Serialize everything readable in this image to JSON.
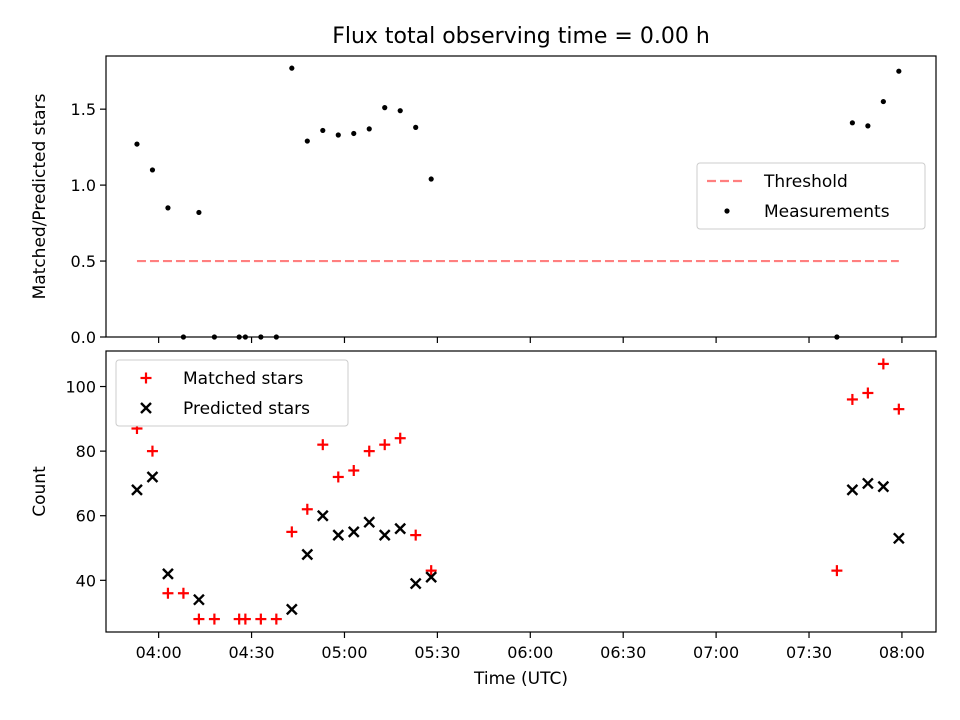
{
  "title": "Flux total observing time = 0.00 h",
  "colors": {
    "threshold": "#ff7f7f",
    "measurements": "#000000",
    "matched": "#ff0000",
    "predicted": "#000000"
  },
  "chart_data": [
    {
      "type": "scatter",
      "panel": "top",
      "ylabel": "Matched/Predicted stars",
      "xlim": [
        "03:43",
        "08:11"
      ],
      "ylim": [
        0,
        1.85
      ],
      "yticks": [
        "0.0",
        "0.5",
        "1.0",
        "1.5"
      ],
      "grid": false,
      "legend_position": "center-right",
      "legend": [
        "Threshold",
        "Measurements"
      ],
      "threshold": {
        "name": "Threshold",
        "value": 0.5,
        "x": [
          "03:53",
          "07:59"
        ]
      },
      "series": [
        {
          "name": "Measurements",
          "x": [
            "03:53",
            "03:58",
            "04:03",
            "04:08",
            "04:13",
            "04:18",
            "04:26",
            "04:28",
            "04:33",
            "04:38",
            "04:43",
            "04:48",
            "04:53",
            "04:58",
            "05:03",
            "05:08",
            "05:13",
            "05:18",
            "05:23",
            "05:28",
            "07:39",
            "07:44",
            "07:49",
            "07:54",
            "07:59"
          ],
          "y": [
            1.27,
            1.1,
            0.85,
            0.0,
            0.82,
            0.0,
            0.0,
            0.0,
            0.0,
            0.0,
            1.77,
            1.29,
            1.36,
            1.33,
            1.34,
            1.37,
            1.51,
            1.49,
            1.38,
            1.04,
            0.0,
            1.41,
            1.39,
            1.55,
            1.75
          ]
        }
      ]
    },
    {
      "type": "scatter",
      "panel": "bottom",
      "xlabel": "Time (UTC)",
      "ylabel": "Count",
      "xlim": [
        "03:43",
        "08:11"
      ],
      "ylim": [
        24,
        111
      ],
      "xticks": [
        "04:00",
        "04:30",
        "05:00",
        "05:30",
        "06:00",
        "06:30",
        "07:00",
        "07:30",
        "08:00"
      ],
      "yticks": [
        "40",
        "60",
        "80",
        "100"
      ],
      "grid": false,
      "legend_position": "top-left",
      "legend": [
        "Matched stars",
        "Predicted stars"
      ],
      "series": [
        {
          "name": "Matched stars",
          "x": [
            "03:53",
            "03:58",
            "04:03",
            "04:08",
            "04:13",
            "04:18",
            "04:26",
            "04:28",
            "04:33",
            "04:38",
            "04:43",
            "04:48",
            "04:53",
            "04:58",
            "05:03",
            "05:08",
            "05:13",
            "05:18",
            "05:23",
            "05:28",
            "07:39",
            "07:44",
            "07:49",
            "07:54",
            "07:59"
          ],
          "y": [
            87,
            80,
            36,
            36,
            28,
            28,
            28,
            28,
            28,
            28,
            55,
            62,
            82,
            72,
            74,
            80,
            82,
            84,
            54,
            43,
            43,
            96,
            98,
            107,
            93
          ]
        },
        {
          "name": "Predicted stars",
          "x": [
            "03:53",
            "03:58",
            "04:03",
            "04:13",
            "04:43",
            "04:48",
            "04:53",
            "04:58",
            "05:03",
            "05:08",
            "05:13",
            "05:18",
            "05:23",
            "05:28",
            "07:44",
            "07:49",
            "07:54",
            "07:59"
          ],
          "y": [
            68,
            72,
            42,
            34,
            31,
            48,
            60,
            54,
            55,
            58,
            54,
            56,
            39,
            41,
            68,
            70,
            69,
            53
          ]
        }
      ]
    }
  ]
}
